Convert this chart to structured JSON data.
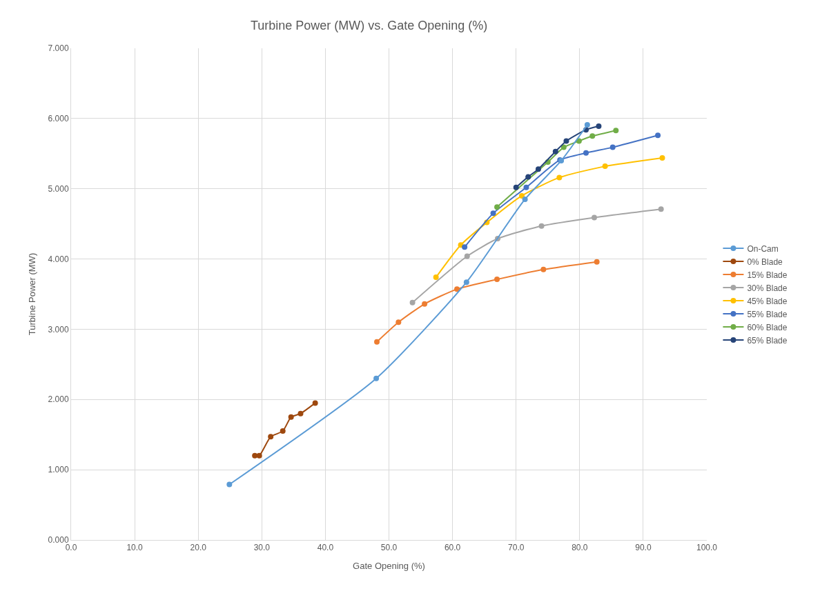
{
  "chart_data": {
    "type": "line",
    "title": "Turbine Power (MW) vs. Gate Opening (%)",
    "xlabel": "Gate Opening (%)",
    "ylabel": "Turbine Power (MW)",
    "xlim": [
      0,
      100
    ],
    "ylim": [
      0,
      7
    ],
    "xticks": [
      {
        "value": 0,
        "label": "0.0"
      },
      {
        "value": 10,
        "label": "10.0"
      },
      {
        "value": 20,
        "label": "20.0"
      },
      {
        "value": 30,
        "label": "30.0"
      },
      {
        "value": 40,
        "label": "40.0"
      },
      {
        "value": 50,
        "label": "50.0"
      },
      {
        "value": 60,
        "label": "60.0"
      },
      {
        "value": 70,
        "label": "70.0"
      },
      {
        "value": 80,
        "label": "80.0"
      },
      {
        "value": 90,
        "label": "90.0"
      },
      {
        "value": 100,
        "label": "100.0"
      }
    ],
    "yticks": [
      {
        "value": 0,
        "label": "0.000"
      },
      {
        "value": 1,
        "label": "1.000"
      },
      {
        "value": 2,
        "label": "2.000"
      },
      {
        "value": 3,
        "label": "3.000"
      },
      {
        "value": 4,
        "label": "4.000"
      },
      {
        "value": 5,
        "label": "5.000"
      },
      {
        "value": 6,
        "label": "6.000"
      },
      {
        "value": 7,
        "label": "7.000"
      }
    ],
    "grid": true,
    "legend": "right",
    "marker": "circle",
    "line_style": "solid",
    "series": [
      {
        "name": "On-Cam",
        "color": "#5b9bd5",
        "x": [
          24.9,
          48.0,
          62.2,
          71.4,
          77.1,
          81.2
        ],
        "values": [
          0.79,
          2.3,
          3.67,
          4.85,
          5.4,
          5.91
        ]
      },
      {
        "name": "0% Blade",
        "color": "#9e480e",
        "x": [
          28.9,
          29.6,
          31.4,
          33.3,
          34.6,
          36.1,
          38.4
        ],
        "values": [
          1.2,
          1.2,
          1.47,
          1.55,
          1.75,
          1.8,
          1.95
        ]
      },
      {
        "name": "15% Blade",
        "color": "#ed7d31",
        "x": [
          48.1,
          51.5,
          55.6,
          60.7,
          67.0,
          74.3,
          82.7
        ],
        "values": [
          2.82,
          3.1,
          3.36,
          3.57,
          3.71,
          3.85,
          3.96
        ]
      },
      {
        "name": "30% Blade",
        "color": "#a5a5a5",
        "x": [
          53.7,
          62.3,
          67.1,
          74.0,
          82.3,
          92.8
        ],
        "values": [
          3.38,
          4.04,
          4.29,
          4.47,
          4.59,
          4.71
        ]
      },
      {
        "name": "45% Blade",
        "color": "#ffc000",
        "x": [
          57.4,
          61.3,
          65.4,
          70.9,
          76.8,
          84.0,
          93.0
        ],
        "values": [
          3.74,
          4.2,
          4.52,
          4.9,
          5.16,
          5.32,
          5.44
        ]
      },
      {
        "name": "55% Blade",
        "color": "#4472c4",
        "x": [
          61.9,
          66.4,
          71.6,
          76.9,
          81.0,
          85.2,
          92.3
        ],
        "values": [
          4.17,
          4.65,
          5.02,
          5.41,
          5.51,
          5.59,
          5.76
        ]
      },
      {
        "name": "60% Blade",
        "color": "#70ad47",
        "x": [
          67.0,
          75.0,
          77.5,
          79.9,
          82.0,
          85.7
        ],
        "values": [
          4.74,
          5.38,
          5.59,
          5.68,
          5.75,
          5.83
        ]
      },
      {
        "name": "65% Blade",
        "color": "#264478",
        "x": [
          70.0,
          71.9,
          73.5,
          76.2,
          77.9,
          81.0,
          83.0
        ],
        "values": [
          5.02,
          5.17,
          5.28,
          5.53,
          5.68,
          5.84,
          5.89
        ]
      }
    ]
  }
}
